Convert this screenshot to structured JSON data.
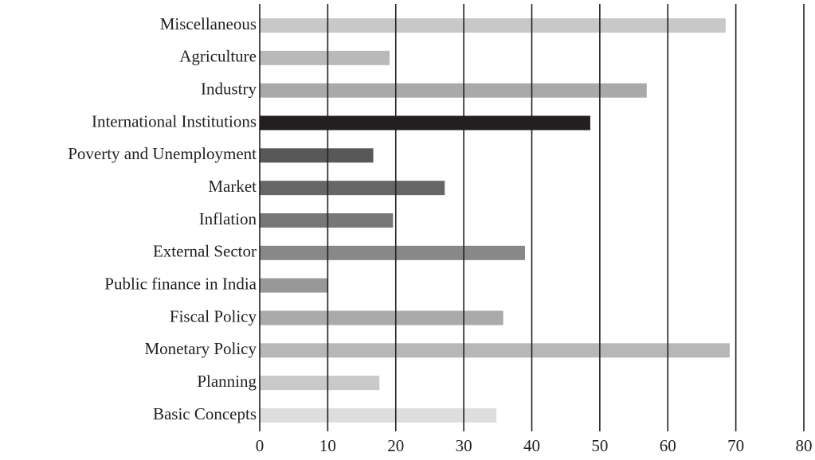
{
  "chart_data": {
    "type": "barh",
    "categories": [
      "Miscellaneous",
      "Agriculture",
      "Industry",
      "International Institutions",
      "Poverty and Unemployment",
      "Market",
      "Inflation",
      "External Sector",
      "Public finance in India",
      "Fiscal Policy",
      "Monetary Policy",
      "Planning",
      "Basic Concepts"
    ],
    "values": [
      68.5,
      19.1,
      56.9,
      48.6,
      16.7,
      27.2,
      19.6,
      39,
      10,
      35.8,
      69.1,
      17.6,
      34.8
    ],
    "colors": [
      "#c8c8c8",
      "#b9b9b9",
      "#a9a9a9",
      "#231f20",
      "#585858",
      "#666666",
      "#777777",
      "#888888",
      "#989898",
      "#aaaaaa",
      "#b7b7b7",
      "#c9c9c9",
      "#dedede"
    ],
    "xlim": [
      0,
      80
    ],
    "xticks": [
      0,
      10,
      20,
      30,
      40,
      50,
      60,
      70,
      80
    ],
    "grid": true
  }
}
